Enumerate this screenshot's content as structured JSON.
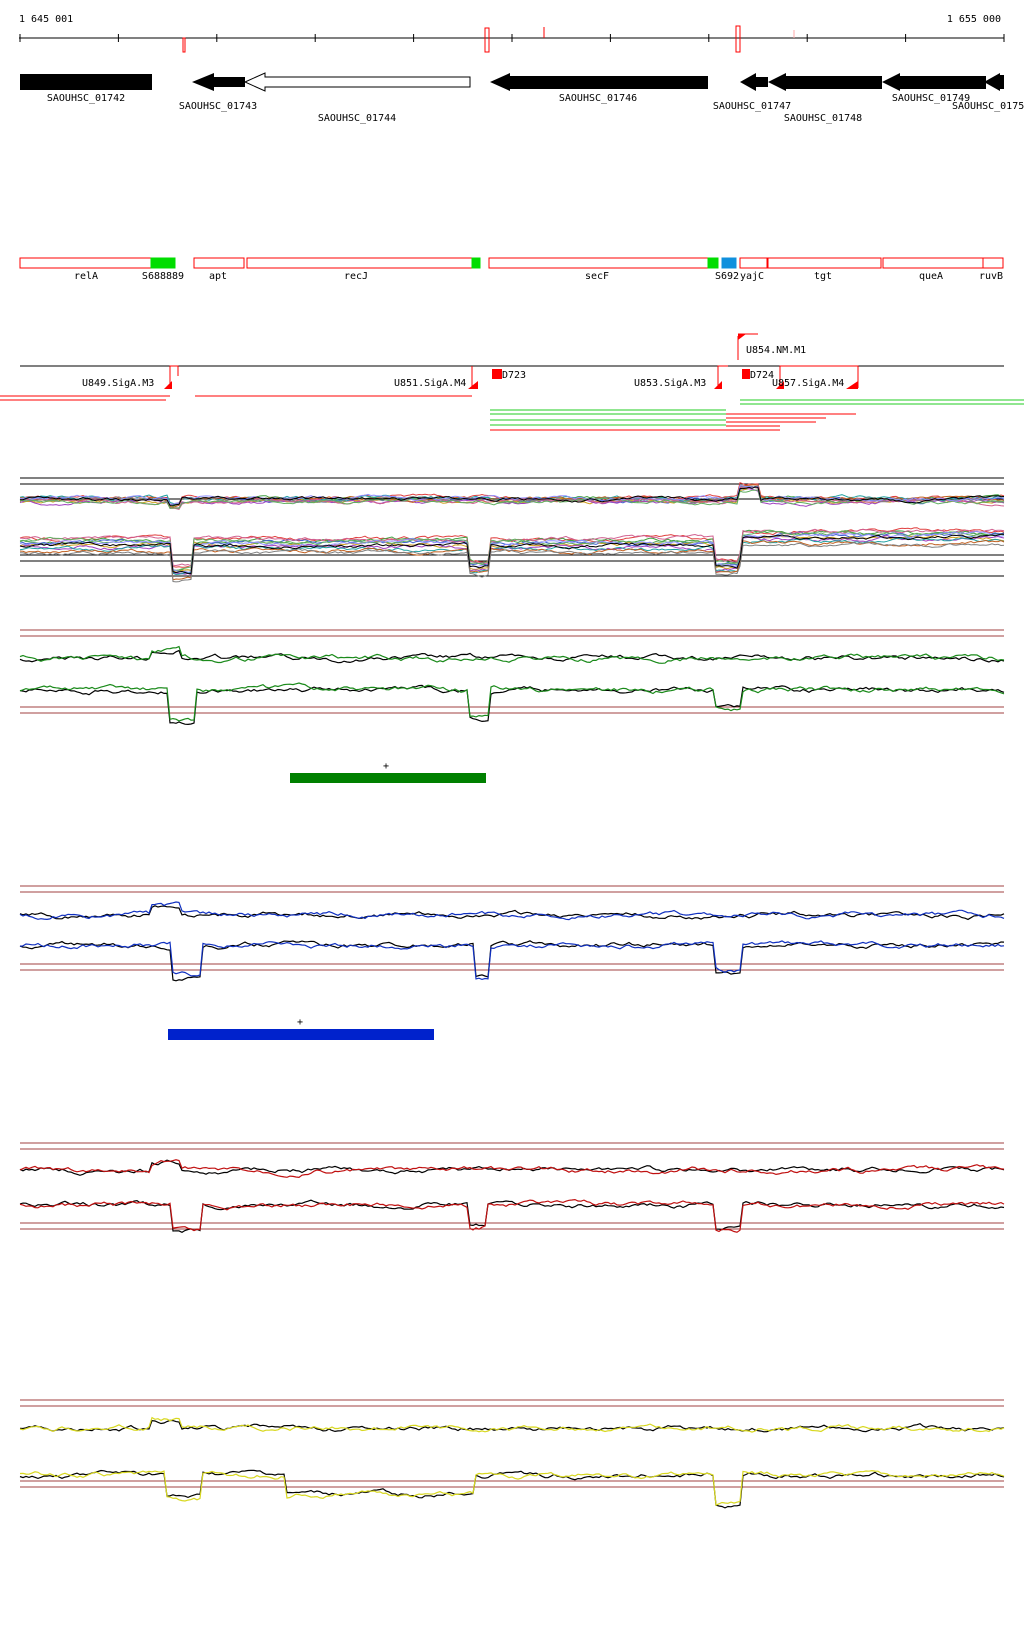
{
  "ruler": {
    "start": "1 645 001",
    "end": "1 655 000"
  },
  "locus_tags": [
    "SAOUHSC_01742",
    "SAOUHSC_01743",
    "SAOUHSC_01744",
    "SAOUHSC_01746",
    "SAOUHSC_01747",
    "SAOUHSC_01748",
    "SAOUHSC_01749",
    "SAOUHSC_0175"
  ],
  "gene_names": [
    "relA",
    "S688889",
    "apt",
    "recJ",
    "secF",
    "S692",
    "yajC",
    "tgt",
    "queA",
    "ruvB"
  ],
  "features": [
    "U849.SigA.M3",
    "U851.SigA.M4",
    "D723",
    "U853.SigA.M3",
    "U854.NM.M1",
    "D724",
    "U857.SigA.M4"
  ],
  "colors": {
    "feature_red": "#ff0000",
    "sig_green": "#00dd00",
    "sig_blue": "#1090dd",
    "track_green": "#1a8a1a",
    "track_blue": "#1030c0",
    "track_red": "#c01010",
    "track_yellow": "#d8d820",
    "strand_plus_green": "#008000",
    "strand_plus_blue": "#0022cc"
  },
  "strand_markers": [
    "+",
    "+"
  ]
}
